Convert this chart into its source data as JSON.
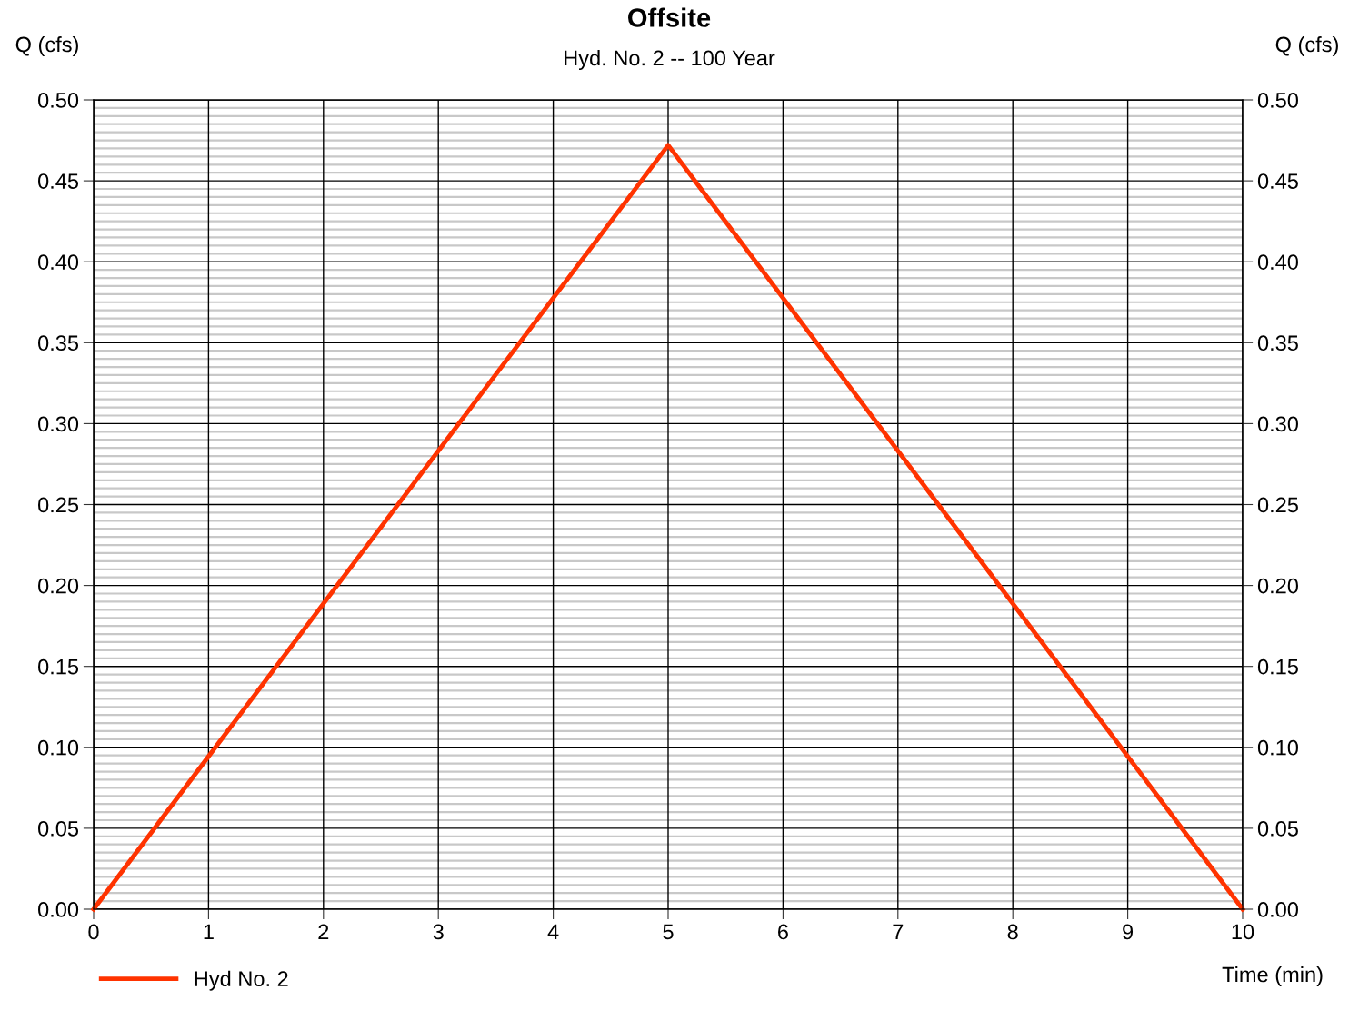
{
  "chart_data": {
    "type": "line",
    "title": "Offsite",
    "subtitle": "Hyd. No. 2 -- 100 Year",
    "xlabel": "Time (min)",
    "ylabel": "Q (cfs)",
    "y2label": "Q (cfs)",
    "series": [
      {
        "name": "Hyd No. 2",
        "color": "#ff3300",
        "x": [
          0,
          5,
          10
        ],
        "values": [
          0,
          0.472,
          0
        ]
      }
    ],
    "xlim": [
      0,
      10
    ],
    "xticks": [
      0,
      1,
      2,
      3,
      4,
      5,
      6,
      7,
      8,
      9,
      10
    ],
    "ylim": [
      0,
      0.5
    ],
    "yticks": [
      {
        "value": 0,
        "label": "0.00"
      },
      {
        "value": 0.05,
        "label": "0.05"
      },
      {
        "value": 0.1,
        "label": "0.10"
      },
      {
        "value": 0.15,
        "label": "0.15"
      },
      {
        "value": 0.2,
        "label": "0.20"
      },
      {
        "value": 0.25,
        "label": "0.25"
      },
      {
        "value": 0.3,
        "label": "0.30"
      },
      {
        "value": 0.35,
        "label": "0.35"
      },
      {
        "value": 0.4,
        "label": "0.40"
      },
      {
        "value": 0.45,
        "label": "0.45"
      },
      {
        "value": 0.5,
        "label": "0.50"
      },
      {
        "value": 0.005,
        "label": null
      },
      {
        "value": 0.01,
        "label": null
      },
      {
        "value": 0.015,
        "label": null
      },
      {
        "value": 0.02,
        "label": null
      },
      {
        "value": 0.025,
        "label": null
      },
      {
        "value": 0.03,
        "label": null
      },
      {
        "value": 0.035,
        "label": null
      },
      {
        "value": 0.04,
        "label": null
      },
      {
        "value": 0.045,
        "label": null
      },
      {
        "value": 0.055,
        "label": null
      },
      {
        "value": 0.06,
        "label": null
      },
      {
        "value": 0.065,
        "label": null
      },
      {
        "value": 0.07,
        "label": null
      },
      {
        "value": 0.075,
        "label": null
      },
      {
        "value": 0.08,
        "label": null
      },
      {
        "value": 0.085,
        "label": null
      },
      {
        "value": 0.09,
        "label": null
      },
      {
        "value": 0.095,
        "label": null
      },
      {
        "value": 0.105,
        "label": null
      },
      {
        "value": 0.11,
        "label": null
      },
      {
        "value": 0.115,
        "label": null
      },
      {
        "value": 0.12,
        "label": null
      },
      {
        "value": 0.125,
        "label": null
      },
      {
        "value": 0.13,
        "label": null
      },
      {
        "value": 0.135,
        "label": null
      },
      {
        "value": 0.14,
        "label": null
      },
      {
        "value": 0.145,
        "label": null
      },
      {
        "value": 0.155,
        "label": null
      },
      {
        "value": 0.16,
        "label": null
      },
      {
        "value": 0.165,
        "label": null
      },
      {
        "value": 0.17,
        "label": null
      },
      {
        "value": 0.175,
        "label": null
      },
      {
        "value": 0.18,
        "label": null
      },
      {
        "value": 0.185,
        "label": null
      },
      {
        "value": 0.19,
        "label": null
      },
      {
        "value": 0.195,
        "label": null
      },
      {
        "value": 0.205,
        "label": null
      },
      {
        "value": 0.21,
        "label": null
      },
      {
        "value": 0.215,
        "label": null
      },
      {
        "value": 0.22,
        "label": null
      },
      {
        "value": 0.225,
        "label": null
      },
      {
        "value": 0.23,
        "label": null
      },
      {
        "value": 0.235,
        "label": null
      },
      {
        "value": 0.24,
        "label": null
      },
      {
        "value": 0.245,
        "label": null
      },
      {
        "value": 0.255,
        "label": null
      },
      {
        "value": 0.26,
        "label": null
      },
      {
        "value": 0.265,
        "label": null
      },
      {
        "value": 0.27,
        "label": null
      },
      {
        "value": 0.275,
        "label": null
      },
      {
        "value": 0.28,
        "label": null
      },
      {
        "value": 0.285,
        "label": null
      },
      {
        "value": 0.29,
        "label": null
      },
      {
        "value": 0.295,
        "label": null
      },
      {
        "value": 0.305,
        "label": null
      },
      {
        "value": 0.31,
        "label": null
      },
      {
        "value": 0.315,
        "label": null
      },
      {
        "value": 0.32,
        "label": null
      },
      {
        "value": 0.325,
        "label": null
      },
      {
        "value": 0.33,
        "label": null
      },
      {
        "value": 0.335,
        "label": null
      },
      {
        "value": 0.34,
        "label": null
      },
      {
        "value": 0.345,
        "label": null
      },
      {
        "value": 0.355,
        "label": null
      },
      {
        "value": 0.36,
        "label": null
      },
      {
        "value": 0.365,
        "label": null
      },
      {
        "value": 0.37,
        "label": null
      },
      {
        "value": 0.375,
        "label": null
      },
      {
        "value": 0.38,
        "label": null
      },
      {
        "value": 0.385,
        "label": null
      },
      {
        "value": 0.39,
        "label": null
      },
      {
        "value": 0.395,
        "label": null
      },
      {
        "value": 0.405,
        "label": null
      },
      {
        "value": 0.41,
        "label": null
      },
      {
        "value": 0.415,
        "label": null
      },
      {
        "value": 0.42,
        "label": null
      },
      {
        "value": 0.425,
        "label": null
      },
      {
        "value": 0.43,
        "label": null
      },
      {
        "value": 0.435,
        "label": null
      },
      {
        "value": 0.44,
        "label": null
      },
      {
        "value": 0.445,
        "label": null
      },
      {
        "value": 0.455,
        "label": null
      },
      {
        "value": 0.46,
        "label": null
      },
      {
        "value": 0.465,
        "label": null
      },
      {
        "value": 0.47,
        "label": null
      },
      {
        "value": 0.475,
        "label": null
      },
      {
        "value": 0.48,
        "label": null
      },
      {
        "value": 0.485,
        "label": null
      },
      {
        "value": 0.49,
        "label": null
      },
      {
        "value": 0.495,
        "label": null
      }
    ],
    "y2lim": [
      0,
      0.5
    ],
    "y2ticks": [
      {
        "value": 0,
        "label": "0.00"
      },
      {
        "value": 0.05,
        "label": "0.05"
      },
      {
        "value": 0.1,
        "label": "0.10"
      },
      {
        "value": 0.15,
        "label": "0.15"
      },
      {
        "value": 0.2,
        "label": "0.20"
      },
      {
        "value": 0.25,
        "label": "0.25"
      },
      {
        "value": 0.3,
        "label": "0.30"
      },
      {
        "value": 0.35,
        "label": "0.35"
      },
      {
        "value": 0.4,
        "label": "0.40"
      },
      {
        "value": 0.45,
        "label": "0.45"
      },
      {
        "value": 0.5,
        "label": "0.50"
      }
    ],
    "grid": true,
    "legend": "bottom left",
    "marker": "none",
    "line_style": "solid"
  }
}
